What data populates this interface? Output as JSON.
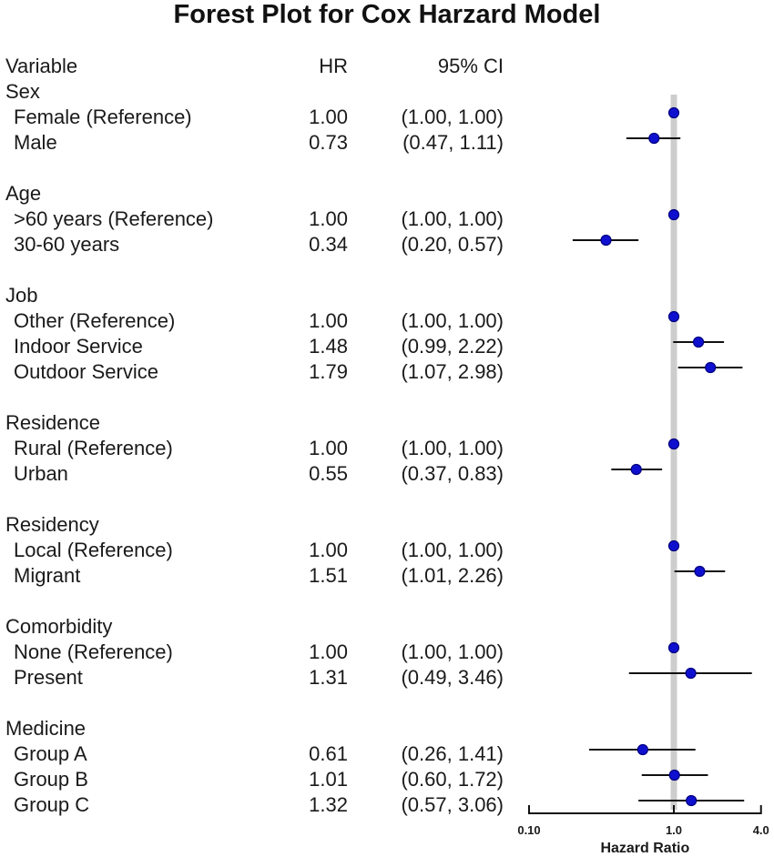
{
  "title": "Forest Plot for Cox Harzard Model",
  "columns": {
    "variable": "Variable",
    "hr": "HR",
    "ci": "95% CI"
  },
  "colors": {
    "marker_fill": "#0f10cf",
    "marker_edge": "#000080",
    "ci_line": "#111111",
    "ref_line": "#cdcdcd",
    "axis_line": "#111111",
    "text": "#1a1a1a"
  },
  "chart_data": {
    "type": "forest",
    "title": "Forest Plot for Cox Harzard Model",
    "xlabel": "Hazard Ratio",
    "xscale": "log",
    "xlim": [
      0.1,
      4.0
    ],
    "xticks": [
      0.1,
      1.0,
      4.0
    ],
    "xtick_labels": [
      "0.10",
      "1.0",
      "4.0"
    ],
    "ref_value": 1.0,
    "groups": [
      {
        "name": "Sex",
        "rows": [
          {
            "label": "Female (Reference)",
            "hr_text": "1.00",
            "ci_text": "(1.00, 1.00)",
            "est": 1.0,
            "lo": 1.0,
            "hi": 1.0,
            "is_reference": true
          },
          {
            "label": "Male",
            "hr_text": "0.73",
            "ci_text": "(0.47, 1.11)",
            "est": 0.73,
            "lo": 0.47,
            "hi": 1.11,
            "is_reference": false
          }
        ]
      },
      {
        "name": "Age",
        "rows": [
          {
            "label": ">60 years (Reference)",
            "hr_text": "1.00",
            "ci_text": "(1.00, 1.00)",
            "est": 1.0,
            "lo": 1.0,
            "hi": 1.0,
            "is_reference": true
          },
          {
            "label": "30-60 years",
            "hr_text": "0.34",
            "ci_text": "(0.20, 0.57)",
            "est": 0.34,
            "lo": 0.2,
            "hi": 0.57,
            "is_reference": false
          }
        ]
      },
      {
        "name": "Job",
        "rows": [
          {
            "label": "Other (Reference)",
            "hr_text": "1.00",
            "ci_text": "(1.00, 1.00)",
            "est": 1.0,
            "lo": 1.0,
            "hi": 1.0,
            "is_reference": true
          },
          {
            "label": "Indoor Service",
            "hr_text": "1.48",
            "ci_text": "(0.99, 2.22)",
            "est": 1.48,
            "lo": 0.99,
            "hi": 2.22,
            "is_reference": false
          },
          {
            "label": "Outdoor Service",
            "hr_text": "1.79",
            "ci_text": "(1.07, 2.98)",
            "est": 1.79,
            "lo": 1.07,
            "hi": 2.98,
            "is_reference": false
          }
        ]
      },
      {
        "name": "Residence",
        "rows": [
          {
            "label": "Rural (Reference)",
            "hr_text": "1.00",
            "ci_text": "(1.00, 1.00)",
            "est": 1.0,
            "lo": 1.0,
            "hi": 1.0,
            "is_reference": true
          },
          {
            "label": "Urban",
            "hr_text": "0.55",
            "ci_text": "(0.37, 0.83)",
            "est": 0.55,
            "lo": 0.37,
            "hi": 0.83,
            "is_reference": false
          }
        ]
      },
      {
        "name": "Residency",
        "rows": [
          {
            "label": "Local (Reference)",
            "hr_text": "1.00",
            "ci_text": "(1.00, 1.00)",
            "est": 1.0,
            "lo": 1.0,
            "hi": 1.0,
            "is_reference": true
          },
          {
            "label": "Migrant",
            "hr_text": "1.51",
            "ci_text": "(1.01, 2.26)",
            "est": 1.51,
            "lo": 1.01,
            "hi": 2.26,
            "is_reference": false
          }
        ]
      },
      {
        "name": "Comorbidity",
        "rows": [
          {
            "label": "None (Reference)",
            "hr_text": "1.00",
            "ci_text": "(1.00, 1.00)",
            "est": 1.0,
            "lo": 1.0,
            "hi": 1.0,
            "is_reference": true
          },
          {
            "label": "Present",
            "hr_text": "1.31",
            "ci_text": "(0.49, 3.46)",
            "est": 1.31,
            "lo": 0.49,
            "hi": 3.46,
            "is_reference": false
          }
        ]
      },
      {
        "name": "Medicine",
        "rows": [
          {
            "label": "Group A",
            "hr_text": "0.61",
            "ci_text": "(0.26, 1.41)",
            "est": 0.61,
            "lo": 0.26,
            "hi": 1.41,
            "is_reference": false
          },
          {
            "label": "Group B",
            "hr_text": "1.01",
            "ci_text": "(0.60, 1.72)",
            "est": 1.01,
            "lo": 0.6,
            "hi": 1.72,
            "is_reference": false
          },
          {
            "label": "Group C",
            "hr_text": "1.32",
            "ci_text": "(0.57, 3.06)",
            "est": 1.32,
            "lo": 0.57,
            "hi": 3.06,
            "is_reference": false
          }
        ]
      }
    ]
  }
}
